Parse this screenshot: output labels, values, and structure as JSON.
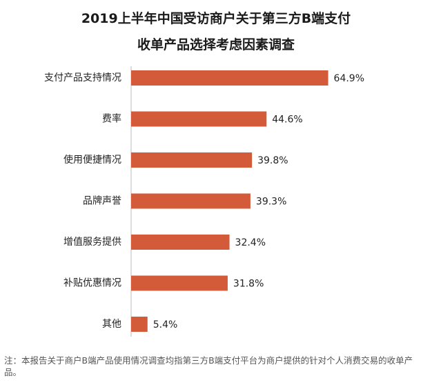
{
  "chart_data": {
    "type": "bar",
    "orientation": "horizontal",
    "title_lines": [
      "2019上半年中国受访商户关于第三方B端支付",
      "收单产品选择考虑因素调查"
    ],
    "categories": [
      "支付产品支持情况",
      "费率",
      "使用便捷情况",
      "品牌声誉",
      "增值服务提供",
      "补贴优惠情况",
      "其他"
    ],
    "values": [
      64.9,
      44.6,
      39.8,
      39.3,
      32.4,
      31.8,
      5.4
    ],
    "value_labels": [
      "64.9%",
      "44.6%",
      "39.8%",
      "39.3%",
      "32.4%",
      "31.8%",
      "5.4%"
    ],
    "unit": "%",
    "xlim": [
      0,
      100
    ],
    "grid": false,
    "legend": "none",
    "bar_color": "#D35B3A"
  },
  "footnote": "注：本报告关于商户B端产品使用情况调查均指第三方B端支付平台为商户提供的针对个人消费交易的收单产品。"
}
